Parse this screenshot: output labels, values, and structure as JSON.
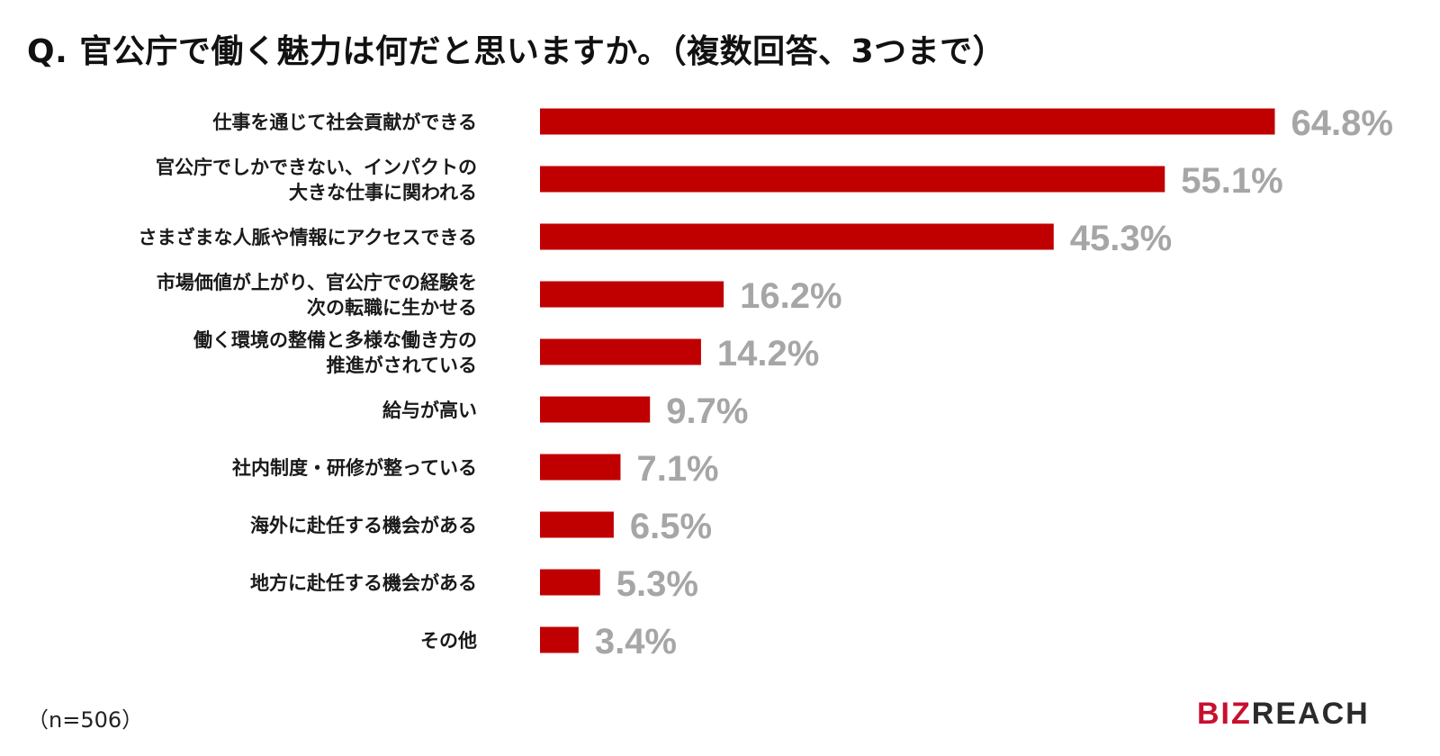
{
  "title": "Q. 官公庁で働く魅力は何だと思いますか。（複数回答、3つまで）",
  "note": "（n=506）",
  "logo": {
    "part1": "BIZ",
    "part2": "REACH"
  },
  "colors": {
    "bar": "#c00000",
    "value_label": "#a6a6a6",
    "category_label": "#1a1a1a"
  },
  "chart_data": {
    "type": "bar",
    "orientation": "horizontal",
    "title": "Q. 官公庁で働く魅力は何だと思いますか。（複数回答、3つまで）",
    "xlim": [
      0,
      70
    ],
    "grid": false,
    "legend": "none",
    "unit": "%",
    "categories": [
      [
        "仕事を通じて社会貢献ができる"
      ],
      [
        "官公庁でしかできない、インパクトの",
        "大きな仕事に関われる"
      ],
      [
        "さまざまな人脈や情報にアクセスできる"
      ],
      [
        "市場価値が上がり、官公庁での経験を",
        "次の転職に生かせる"
      ],
      [
        "働く環境の整備と多様な働き方の",
        "推進がされている"
      ],
      [
        "給与が高い"
      ],
      [
        "社内制度・研修が整っている"
      ],
      [
        "海外に赴任する機会がある"
      ],
      [
        "地方に赴任する機会がある"
      ],
      [
        "その他"
      ]
    ],
    "values": [
      64.8,
      55.1,
      45.3,
      16.2,
      14.2,
      9.7,
      7.1,
      6.5,
      5.3,
      3.4
    ],
    "value_labels": [
      "64.8%",
      "55.1%",
      "45.3%",
      "16.2%",
      "14.2%",
      "9.7%",
      "7.1%",
      "6.5%",
      "5.3%",
      "3.4%"
    ]
  }
}
